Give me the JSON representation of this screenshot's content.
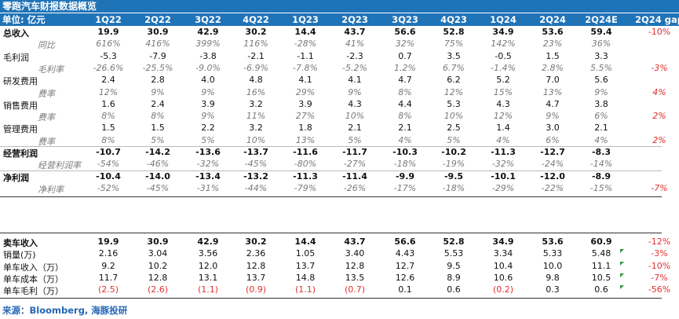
{
  "title": "零跑汽车财报数据概览",
  "header": {
    "unit_label": "单位: 亿元",
    "columns": [
      "1Q22",
      "2Q22",
      "3Q22",
      "4Q22",
      "1Q23",
      "2Q23",
      "3Q23",
      "4Q23",
      "1Q24",
      "2Q24",
      "2Q24E",
      "2Q24 gap"
    ]
  },
  "rows": [
    {
      "label": "总收入",
      "style": "bold",
      "values": [
        "19.9",
        "30.9",
        "42.9",
        "30.2",
        "14.4",
        "43.7",
        "56.6",
        "52.8",
        "34.9",
        "53.6",
        "59.4"
      ],
      "gap": "-10%",
      "gap_color": "#e03030"
    },
    {
      "label": "同比",
      "style": "sub",
      "values": [
        "616%",
        "416%",
        "399%",
        "116%",
        "-28%",
        "41%",
        "32%",
        "75%",
        "142%",
        "23%",
        "36%"
      ],
      "gap": "",
      "gap_color": ""
    },
    {
      "label": "毛利润",
      "style": "normal",
      "values": [
        "-5.3",
        "-7.9",
        "-3.8",
        "-2.1",
        "-1.1",
        "-2.3",
        "0.7",
        "3.5",
        "-0.5",
        "1.5",
        "3.3"
      ],
      "gap": "",
      "gap_color": ""
    },
    {
      "label": "毛利率",
      "style": "sub",
      "values": [
        "-26.6%",
        "-25.5%",
        "-9.0%",
        "-6.9%",
        "-7.8%",
        "-5.2%",
        "1.2%",
        "6.7%",
        "-1.4%",
        "2.8%",
        "5.5%"
      ],
      "gap": "-3%",
      "gap_color": "#e03030"
    },
    {
      "label": "研发费用",
      "style": "normal",
      "values": [
        "2.4",
        "2.8",
        "4.0",
        "4.8",
        "4.1",
        "4.1",
        "4.7",
        "6.2",
        "5.2",
        "7.0",
        "5.6"
      ],
      "gap": "",
      "gap_color": ""
    },
    {
      "label": "费率",
      "style": "sub",
      "values": [
        "12%",
        "9%",
        "9%",
        "16%",
        "29%",
        "9%",
        "8%",
        "12%",
        "15%",
        "13%",
        "9%"
      ],
      "gap": "4%",
      "gap_color": "#e03030"
    },
    {
      "label": "销售费用",
      "style": "normal",
      "values": [
        "1.6",
        "2.4",
        "3.9",
        "3.2",
        "3.9",
        "4.3",
        "4.4",
        "5.3",
        "4.3",
        "4.7",
        "3.8"
      ],
      "gap": "",
      "gap_color": ""
    },
    {
      "label": "费率",
      "style": "sub",
      "values": [
        "8%",
        "8%",
        "9%",
        "11%",
        "27%",
        "10%",
        "8%",
        "10%",
        "12%",
        "9%",
        "6%"
      ],
      "gap": "2%",
      "gap_color": "#e03030"
    },
    {
      "label": "管理费用",
      "style": "normal",
      "values": [
        "1.5",
        "1.5",
        "2.2",
        "3.2",
        "1.8",
        "2.1",
        "2.1",
        "2.5",
        "1.4",
        "3.0",
        "2.1"
      ],
      "gap": "",
      "gap_color": ""
    },
    {
      "label": "费率",
      "style": "sub",
      "values": [
        "8%",
        "5%",
        "5%",
        "10%",
        "13%",
        "5%",
        "4%",
        "5%",
        "4%",
        "6%",
        "4%"
      ],
      "gap": "2%",
      "gap_color": "#e03030"
    },
    {
      "label": "经营利润",
      "style": "bold",
      "values": [
        "-10.7",
        "-14.2",
        "-13.6",
        "-13.7",
        "-11.6",
        "-11.7",
        "-10.3",
        "-10.2",
        "-11.3",
        "-12.7",
        "-8.3"
      ],
      "gap": "",
      "gap_color": ""
    },
    {
      "label": "经营利润率",
      "style": "sub",
      "values": [
        "-54%",
        "-46%",
        "-32%",
        "-45%",
        "-80%",
        "-27%",
        "-18%",
        "-19%",
        "-32%",
        "-24%",
        "-14%"
      ],
      "gap": "",
      "gap_color": ""
    },
    {
      "label": "净利润",
      "style": "bold",
      "values": [
        "-10.4",
        "-14.0",
        "-13.4",
        "-13.2",
        "-11.3",
        "-11.4",
        "-9.9",
        "-9.5",
        "-10.1",
        "-12.0",
        "-8.9"
      ],
      "gap": "",
      "gap_color": ""
    },
    {
      "label": "净利率",
      "style": "sub",
      "values": [
        "-52%",
        "-45%",
        "-31%",
        "-44%",
        "-79%",
        "-26%",
        "-17%",
        "-18%",
        "-29%",
        "-22%",
        "-15%"
      ],
      "gap": "-7%",
      "gap_color": "#e03030"
    }
  ],
  "unit_rows": [
    {
      "label": "卖车收入",
      "style": "bold",
      "values": [
        "19.9",
        "30.9",
        "42.9",
        "30.2",
        "14.4",
        "43.7",
        "56.6",
        "52.8",
        "34.9",
        "53.6",
        "60.9"
      ],
      "gap": "-12%",
      "gap_color": "#e03030"
    },
    {
      "label": "销量(万)",
      "style": "normal",
      "values": [
        "2.16",
        "3.04",
        "3.56",
        "2.36",
        "1.05",
        "3.40",
        "4.43",
        "5.53",
        "3.34",
        "5.33",
        "5.48"
      ],
      "gap": "-3%",
      "gap_color": "#e03030"
    },
    {
      "label": "单车收入（万）",
      "style": "normal",
      "values": [
        "9.2",
        "10.2",
        "12.0",
        "12.8",
        "13.7",
        "12.8",
        "12.7",
        "9.5",
        "10.4",
        "10.0",
        "11.1"
      ],
      "gap": "-10%",
      "gap_color": "#e03030"
    },
    {
      "label": "单车成本（万）",
      "style": "normal",
      "values": [
        "11.7",
        "12.8",
        "13.1",
        "13.7",
        "14.8",
        "13.5",
        "12.6",
        "8.9",
        "10.6",
        "9.8",
        "10.5"
      ],
      "gap": "-7%",
      "gap_color": "#e03030"
    },
    {
      "label": "单车毛利（万）",
      "style": "normal",
      "values": [
        "(2.5)",
        "(2.6)",
        "(1.1)",
        "(0.9)",
        "(1.1)",
        "(0.7)",
        "0.1",
        "0.6",
        "(0.2)",
        "0.3",
        "0.6"
      ],
      "gap": "-56%",
      "gap_color": "#e03030",
      "neg_color": "#e03030"
    }
  ],
  "footer": {
    "source": "来源：Bloomberg, 海豚投研"
  }
}
